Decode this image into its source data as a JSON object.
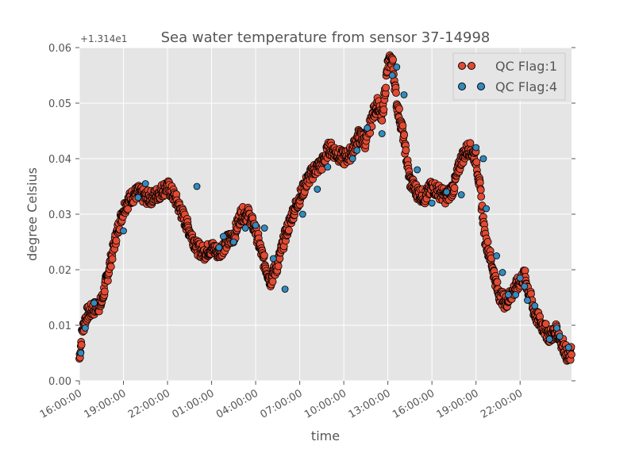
{
  "chart_data": {
    "type": "scatter",
    "title": "Sea water temperature from sensor 37-14998",
    "xlabel": "time",
    "ylabel": "degree Celsius",
    "offset_label": "+1.314e1",
    "ylim": [
      0.0,
      0.06
    ],
    "y_ticks": [
      0.0,
      0.01,
      0.02,
      0.03,
      0.04,
      0.05,
      0.06
    ],
    "y_tick_labels": [
      "0.00",
      "0.01",
      "0.02",
      "0.03",
      "0.04",
      "0.05",
      "0.06"
    ],
    "x_tick_labels": [
      "16:00:00",
      "19:00:00",
      "22:00:00",
      "01:00:00",
      "04:00:00",
      "07:00:00",
      "10:00:00",
      "13:00:00",
      "16:00:00",
      "19:00:00",
      "22:00:00"
    ],
    "x_tick_hours": [
      16,
      19,
      22,
      25,
      28,
      31,
      34,
      37,
      40,
      43,
      46
    ],
    "xlim_hours": [
      16,
      49.5
    ],
    "grid": true,
    "legend_position": "top-right",
    "colors": {
      "plot_background": "#e5e5e5",
      "grid": "#ffffff",
      "flag1_fill": "#e24a33",
      "flag4_fill": "#348abd",
      "marker_edge": "#000000"
    },
    "series": [
      {
        "name": "QC Flag:1",
        "color": "#e24a33",
        "x_hours": [
          16.0,
          16.2,
          16.5,
          17.0,
          17.5,
          18.0,
          18.5,
          19.0,
          19.5,
          20.0,
          20.5,
          21.0,
          21.5,
          22.0,
          22.5,
          23.0,
          23.5,
          24.0,
          24.5,
          25.0,
          25.5,
          26.0,
          26.5,
          27.0,
          27.5,
          28.0,
          28.5,
          29.0,
          29.5,
          30.0,
          30.5,
          31.0,
          31.5,
          32.0,
          32.5,
          33.0,
          33.5,
          34.0,
          34.5,
          35.0,
          35.5,
          36.0,
          36.3,
          36.6,
          37.0,
          37.3,
          37.6,
          38.0,
          38.5,
          39.0,
          39.5,
          40.0,
          40.5,
          41.0,
          41.5,
          42.0,
          42.5,
          43.0,
          43.3,
          43.6,
          44.0,
          44.5,
          45.0,
          45.5,
          46.0,
          46.3,
          46.6,
          47.0,
          47.5,
          48.0,
          48.5,
          49.0,
          49.3,
          49.5
        ],
        "values": [
          0.004,
          0.009,
          0.012,
          0.013,
          0.014,
          0.02,
          0.026,
          0.031,
          0.033,
          0.034,
          0.033,
          0.033,
          0.034,
          0.035,
          0.033,
          0.03,
          0.027,
          0.024,
          0.023,
          0.024,
          0.023,
          0.025,
          0.026,
          0.03,
          0.03,
          0.027,
          0.022,
          0.018,
          0.021,
          0.026,
          0.03,
          0.033,
          0.036,
          0.038,
          0.039,
          0.042,
          0.041,
          0.04,
          0.041,
          0.044,
          0.043,
          0.048,
          0.05,
          0.047,
          0.057,
          0.058,
          0.05,
          0.045,
          0.036,
          0.034,
          0.033,
          0.035,
          0.034,
          0.033,
          0.035,
          0.04,
          0.042,
          0.04,
          0.034,
          0.026,
          0.022,
          0.016,
          0.014,
          0.016,
          0.018,
          0.019,
          0.016,
          0.012,
          0.01,
          0.008,
          0.009,
          0.006,
          0.004,
          0.005
        ]
      },
      {
        "name": "QC Flag:4",
        "color": "#348abd",
        "x_hours": [
          16.1,
          16.4,
          17.0,
          19.0,
          20.0,
          20.5,
          24.0,
          25.5,
          25.8,
          26.5,
          27.3,
          28.0,
          28.6,
          29.2,
          30.0,
          31.2,
          32.2,
          32.9,
          34.6,
          34.9,
          35.6,
          36.6,
          37.3,
          37.6,
          38.1,
          39.0,
          40.0,
          41.0,
          42.0,
          43.0,
          43.5,
          43.7,
          44.4,
          44.8,
          45.2,
          45.7,
          46.0,
          46.3,
          46.5,
          47.0,
          48.0,
          48.5,
          48.7,
          49.3
        ],
        "values": [
          0.005,
          0.0095,
          0.014,
          0.027,
          0.033,
          0.0355,
          0.035,
          0.024,
          0.026,
          0.025,
          0.0275,
          0.028,
          0.0275,
          0.022,
          0.0165,
          0.03,
          0.0345,
          0.0385,
          0.04,
          0.0415,
          0.0455,
          0.0445,
          0.055,
          0.0565,
          0.0515,
          0.038,
          0.032,
          0.034,
          0.0335,
          0.042,
          0.04,
          0.031,
          0.0225,
          0.0195,
          0.0155,
          0.0155,
          0.0185,
          0.017,
          0.0145,
          0.0135,
          0.0075,
          0.0095,
          0.008,
          0.006
        ]
      }
    ]
  }
}
